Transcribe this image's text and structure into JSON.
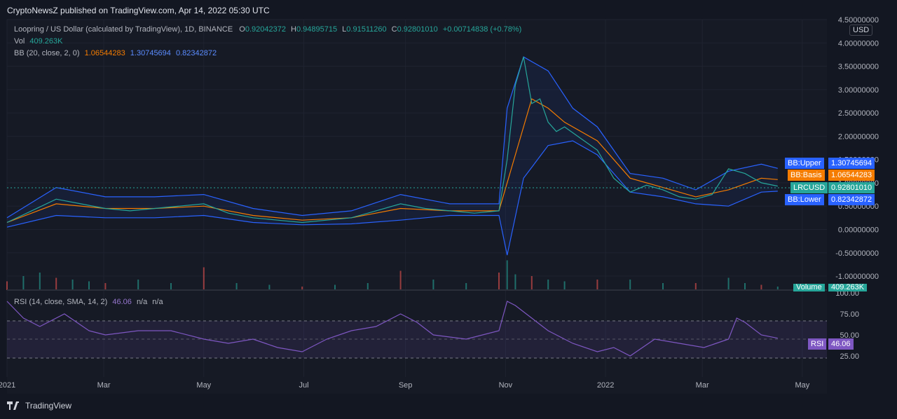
{
  "header": {
    "publish_text": "CryptoNewsZ published on TradingView.com, Apr 14, 2022 05:30 UTC"
  },
  "legend": {
    "symbol_line": "Loopring / US Dollar (calculated by TradingView), 1D, BINANCE",
    "o_label": "O",
    "o_value": "0.92042372",
    "h_label": "H",
    "h_value": "0.94895715",
    "l_label": "L",
    "l_value": "0.91511260",
    "c_label": "C",
    "c_value": "0.92801010",
    "change": "+0.00714838 (+0.78%)",
    "vol_label": "Vol",
    "vol_value": "409.263K",
    "bb_label": "BB (20, close, 2, 0)",
    "bb_basis": "1.06544283",
    "bb_upper": "1.30745694",
    "bb_lower": "0.82342872",
    "rsi_label": "RSI (14, close, SMA, 14, 2)",
    "rsi_value": "46.06",
    "rsi_na1": "n/a",
    "rsi_na2": "n/a"
  },
  "price_tags": {
    "bb_upper_label": "BB:Upper",
    "bb_upper_value": "1.30745694",
    "bb_basis_label": "BB:Basis",
    "bb_basis_value": "1.06544283",
    "lrcusd_label": "LRCUSD",
    "lrcusd_value": "0.92801010",
    "bb_lower_label": "BB:Lower",
    "bb_lower_value": "0.82342872",
    "volume_label": "Volume",
    "volume_value": "409.263K",
    "rsi_label": "RSI",
    "rsi_value": "46.06"
  },
  "currency": "USD",
  "footer": {
    "brand": "TradingView"
  },
  "colors": {
    "up": "#26a69a",
    "down": "#ef5350",
    "bb_band": "#2962ff",
    "bb_basis": "#f57c00",
    "rsi": "#7e57c2"
  },
  "chart_data": {
    "type": "line",
    "price_axis_ticks": [
      "4.50000000",
      "4.00000000",
      "3.50000000",
      "3.00000000",
      "2.50000000",
      "2.00000000",
      "1.50000000",
      "1.00000000",
      "0.50000000",
      "0.00000000",
      "-0.50000000",
      "-1.00000000"
    ],
    "price_ylim": [
      -1.3,
      4.5
    ],
    "rsi_axis_ticks": [
      "100.00",
      "75.00",
      "50.00",
      "25.00"
    ],
    "rsi_ylim": [
      0,
      100
    ],
    "x_tick_labels": [
      "2021",
      "Mar",
      "May",
      "Jul",
      "Sep",
      "Nov",
      "2022",
      "Mar",
      "May"
    ],
    "x_tick_days": [
      0,
      59,
      120,
      181,
      243,
      304,
      365,
      424,
      485
    ],
    "series": [
      {
        "name": "LRCUSD",
        "x_days": [
          0,
          15,
          30,
          45,
          60,
          75,
          90,
          105,
          120,
          135,
          150,
          165,
          180,
          195,
          210,
          225,
          240,
          255,
          270,
          285,
          300,
          305,
          310,
          315,
          320,
          325,
          330,
          335,
          340,
          350,
          360,
          370,
          380,
          390,
          400,
          410,
          420,
          430,
          440,
          450,
          460,
          470
        ],
        "y": [
          0.15,
          0.4,
          0.65,
          0.55,
          0.45,
          0.4,
          0.45,
          0.5,
          0.55,
          0.35,
          0.25,
          0.2,
          0.15,
          0.2,
          0.25,
          0.4,
          0.55,
          0.45,
          0.4,
          0.35,
          0.4,
          1.5,
          3.1,
          3.7,
          2.7,
          2.8,
          2.3,
          2.1,
          2.2,
          1.95,
          1.7,
          1.1,
          0.8,
          0.95,
          0.85,
          0.7,
          0.65,
          0.75,
          1.3,
          1.2,
          1.0,
          0.93
        ]
      },
      {
        "name": "BB:Basis",
        "x_days": [
          0,
          30,
          60,
          90,
          120,
          150,
          180,
          210,
          240,
          270,
          300,
          310,
          320,
          330,
          340,
          360,
          380,
          400,
          420,
          440,
          460,
          470
        ],
        "y": [
          0.15,
          0.55,
          0.45,
          0.45,
          0.5,
          0.3,
          0.2,
          0.25,
          0.45,
          0.4,
          0.4,
          1.6,
          2.8,
          2.6,
          2.3,
          1.9,
          1.1,
          0.9,
          0.7,
          0.85,
          1.1,
          1.07
        ]
      },
      {
        "name": "BB:Upper",
        "x_days": [
          0,
          30,
          60,
          90,
          120,
          150,
          180,
          210,
          240,
          270,
          300,
          305,
          315,
          330,
          345,
          360,
          380,
          400,
          420,
          440,
          460,
          470
        ],
        "y": [
          0.25,
          0.9,
          0.7,
          0.7,
          0.75,
          0.45,
          0.3,
          0.4,
          0.75,
          0.55,
          0.55,
          2.6,
          3.7,
          3.4,
          2.6,
          2.2,
          1.2,
          1.1,
          0.85,
          1.25,
          1.4,
          1.31
        ]
      },
      {
        "name": "BB:Lower",
        "x_days": [
          0,
          30,
          60,
          90,
          120,
          150,
          180,
          210,
          240,
          270,
          300,
          305,
          315,
          330,
          345,
          360,
          380,
          400,
          420,
          440,
          460,
          470
        ],
        "y": [
          0.05,
          0.3,
          0.25,
          0.25,
          0.3,
          0.15,
          0.1,
          0.12,
          0.2,
          0.3,
          0.3,
          -0.55,
          1.1,
          1.8,
          1.9,
          1.6,
          0.8,
          0.7,
          0.55,
          0.5,
          0.8,
          0.82
        ]
      },
      {
        "name": "RSI",
        "x_days": [
          0,
          10,
          20,
          35,
          50,
          60,
          80,
          100,
          120,
          135,
          150,
          165,
          180,
          195,
          210,
          225,
          240,
          250,
          260,
          280,
          300,
          305,
          310,
          320,
          330,
          345,
          360,
          370,
          380,
          395,
          410,
          425,
          440,
          445,
          450,
          460,
          470
        ],
        "y": [
          90,
          70,
          60,
          75,
          55,
          50,
          55,
          55,
          45,
          40,
          45,
          35,
          30,
          45,
          55,
          60,
          75,
          65,
          50,
          45,
          55,
          90,
          85,
          70,
          55,
          40,
          30,
          35,
          25,
          45,
          40,
          35,
          45,
          70,
          65,
          50,
          46.06
        ]
      }
    ],
    "volume": {
      "x_days": [
        0,
        10,
        20,
        30,
        40,
        50,
        60,
        80,
        100,
        120,
        140,
        160,
        180,
        200,
        220,
        240,
        260,
        280,
        300,
        305,
        310,
        320,
        330,
        340,
        360,
        380,
        400,
        420,
        440,
        450,
        460,
        470
      ],
      "y": [
        0.25,
        0.4,
        0.5,
        0.35,
        0.3,
        0.25,
        0.2,
        0.3,
        0.2,
        0.65,
        0.2,
        0.15,
        0.1,
        0.15,
        0.2,
        0.55,
        0.3,
        0.2,
        0.5,
        0.85,
        0.45,
        0.4,
        0.3,
        0.25,
        0.3,
        0.3,
        0.2,
        0.2,
        0.35,
        0.2,
        0.15,
        0.1
      ]
    }
  }
}
